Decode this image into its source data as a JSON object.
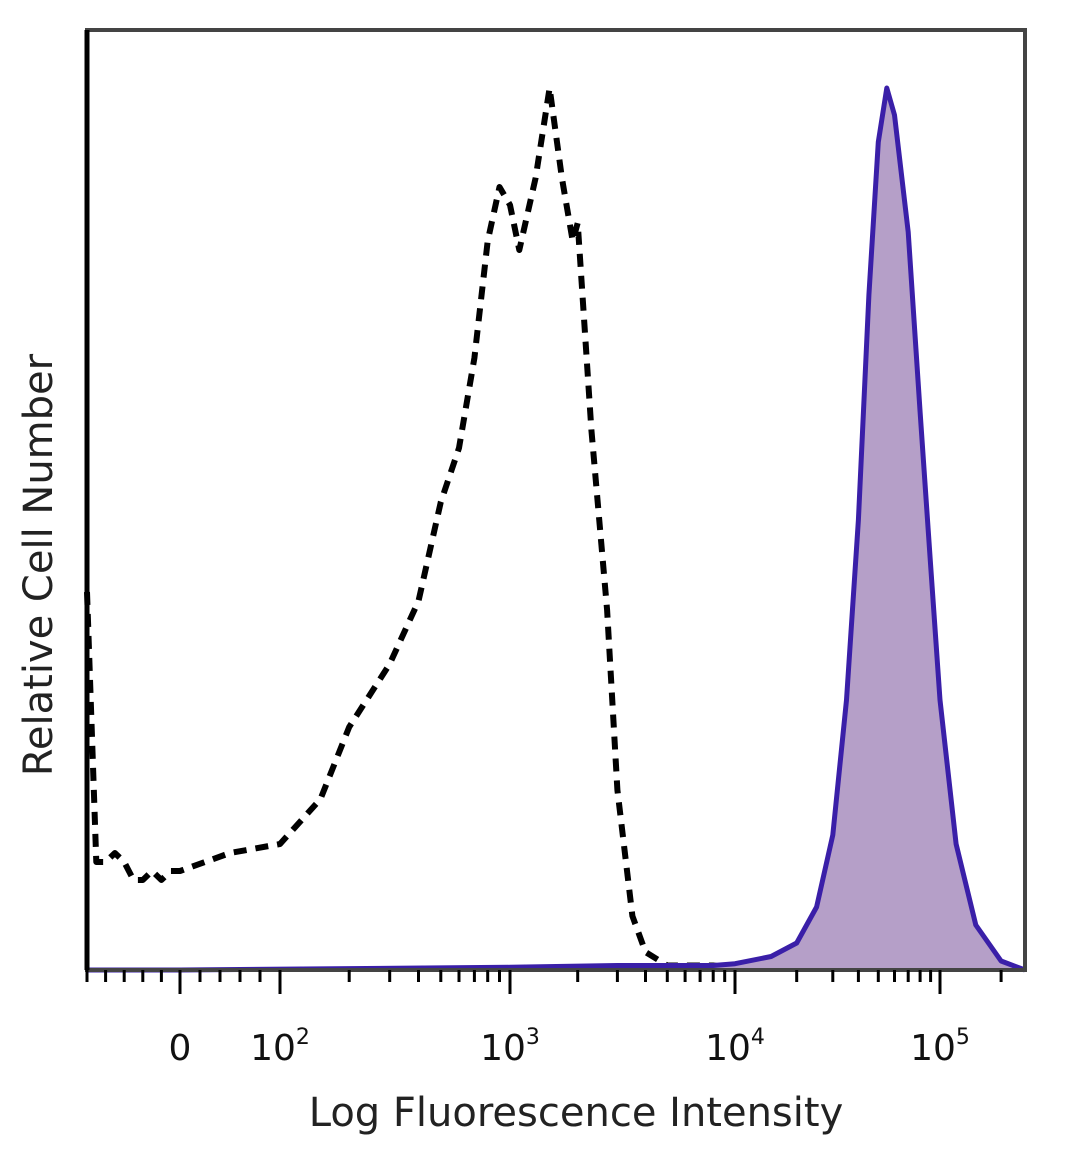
{
  "chart_data": {
    "type": "area",
    "title": "",
    "xlabel": "Log Fluorescence Intensity",
    "ylabel": "Relative Cell Number",
    "xscale": "biexponential",
    "xlim": [
      -1000,
      262144
    ],
    "ylim": [
      0,
      100
    ],
    "grid": false,
    "legend": "none",
    "x_tick_labels": [
      {
        "base": "0",
        "exp": "",
        "value": 0
      },
      {
        "base": "10",
        "exp": "2",
        "value": 100
      },
      {
        "base": "10",
        "exp": "3",
        "value": 1000
      },
      {
        "base": "10",
        "exp": "4",
        "value": 10000
      },
      {
        "base": "10",
        "exp": "5",
        "value": 100000
      }
    ],
    "series": [
      {
        "style": "dashed",
        "color": "#000000",
        "x": [
          -1000,
          -900,
          -800,
          -700,
          -600,
          -500,
          -400,
          -300,
          -200,
          -100,
          0,
          50,
          100,
          150,
          200,
          300,
          400,
          500,
          600,
          700,
          800,
          900,
          1000,
          1100,
          1300,
          1500,
          1700,
          1900,
          2000,
          2300,
          2700,
          3000,
          3500,
          4000,
          5000,
          6000,
          7000,
          8000,
          10000
        ],
        "y": [
          42,
          12,
          12,
          13,
          12,
          10,
          10,
          11,
          10,
          11,
          11,
          13,
          14,
          19,
          27,
          34,
          41,
          52,
          58,
          68,
          81,
          87,
          85,
          80,
          88,
          98,
          88,
          81,
          83,
          60,
          40,
          20,
          6,
          2,
          0.5,
          0.5,
          0.5,
          0.5,
          0.2
        ]
      },
      {
        "style": "filled",
        "color": "#3a1fa8",
        "fill": "#b59fc8",
        "x": [
          -1000,
          0,
          1000,
          3000,
          5000,
          8000,
          10000,
          15000,
          20000,
          25000,
          30000,
          35000,
          40000,
          45000,
          50000,
          55000,
          60000,
          70000,
          80000,
          90000,
          100000,
          120000,
          150000,
          200000,
          262144
        ],
        "y": [
          0,
          0,
          0.3,
          0.5,
          0.5,
          0.5,
          0.7,
          1.5,
          3,
          7,
          15,
          30,
          50,
          75,
          92,
          98,
          95,
          82,
          62,
          45,
          30,
          14,
          5,
          1,
          0
        ]
      }
    ]
  }
}
